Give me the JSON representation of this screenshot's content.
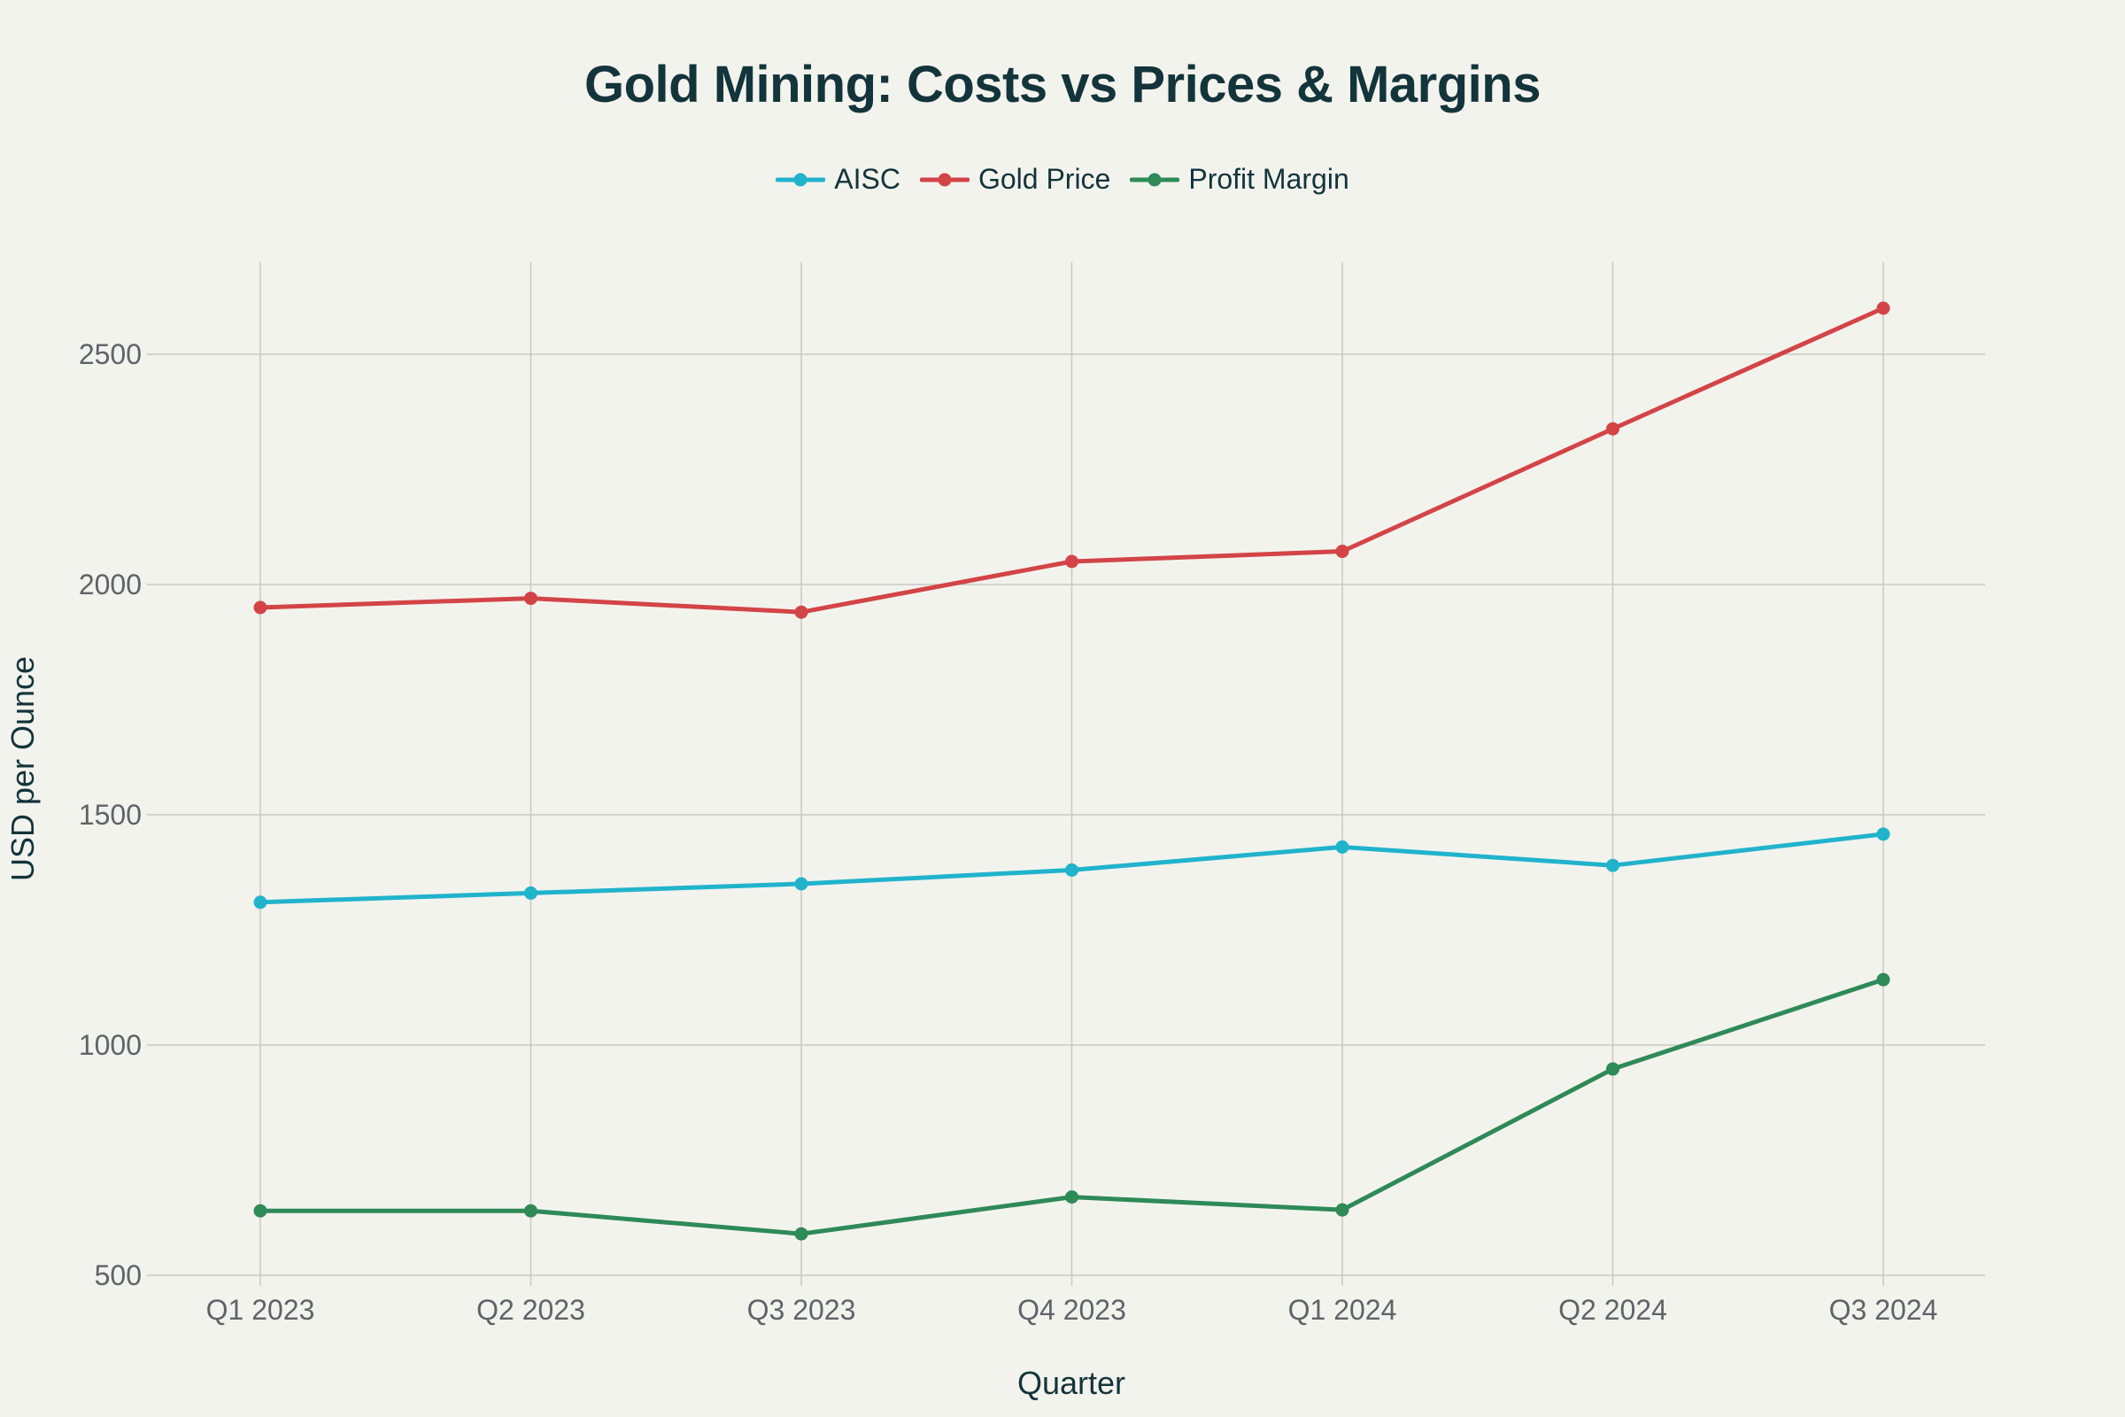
{
  "chart_data": {
    "type": "line",
    "title": "Gold Mining: Costs vs Prices & Margins",
    "xlabel": "Quarter",
    "ylabel": "USD per Ounce",
    "categories": [
      "Q1 2023",
      "Q2 2023",
      "Q3 2023",
      "Q4 2023",
      "Q1 2024",
      "Q2 2024",
      "Q3 2024"
    ],
    "ylim": [
      500,
      2700
    ],
    "yticks": [
      500,
      1000,
      1500,
      2000,
      2500
    ],
    "grid": true,
    "legend_position": "top-center",
    "series": [
      {
        "name": "AISC",
        "color": "#21b3cc",
        "values": [
          1310,
          1330,
          1350,
          1380,
          1430,
          1390,
          1458
        ]
      },
      {
        "name": "Gold Price",
        "color": "#d34447",
        "values": [
          1950,
          1970,
          1940,
          2050,
          2072,
          2338,
          2600
        ]
      },
      {
        "name": "Profit Margin",
        "color": "#2e8a57",
        "values": [
          640,
          640,
          590,
          670,
          642,
          948,
          1142
        ]
      }
    ]
  }
}
